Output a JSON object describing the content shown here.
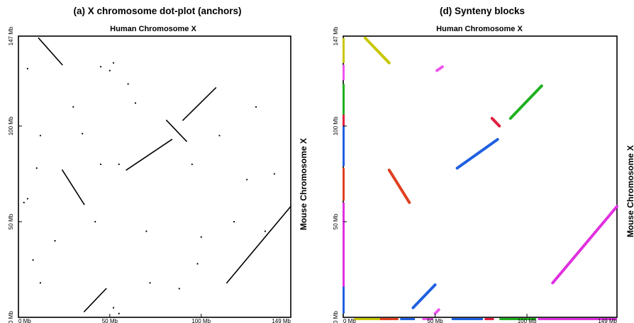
{
  "chart_data": [
    {
      "type": "scatter",
      "title": "(a) X chromosome dot-plot (anchors)",
      "xlabel": "Human Chromosome X",
      "ylabel": "Mouse Chromosome X",
      "xlim": [
        0,
        149
      ],
      "ylim": [
        0,
        147
      ],
      "xticks": [
        {
          "value": 0,
          "label": "0 Mb"
        },
        {
          "value": 50,
          "label": "50 Mb"
        },
        {
          "value": 100,
          "label": "100 Mb"
        },
        {
          "value": 149,
          "label": "149 Mb"
        }
      ],
      "yticks": [
        {
          "value": 0,
          "label": "0 Mb"
        },
        {
          "value": 50,
          "label": "50 Mb"
        },
        {
          "value": 100,
          "label": "100 Mb"
        },
        {
          "value": 147,
          "label": "147 Mb"
        }
      ],
      "segments": [
        {
          "x": [
            11,
            24
          ],
          "y": [
            146,
            132
          ]
        },
        {
          "x": [
            24,
            36
          ],
          "y": [
            77,
            59
          ]
        },
        {
          "x": [
            36,
            48
          ],
          "y": [
            3,
            15
          ]
        },
        {
          "x": [
            59,
            84
          ],
          "y": [
            77,
            93
          ]
        },
        {
          "x": [
            81,
            92
          ],
          "y": [
            103,
            92
          ]
        },
        {
          "x": [
            90,
            108
          ],
          "y": [
            103,
            120
          ]
        },
        {
          "x": [
            114,
            149
          ],
          "y": [
            18,
            58
          ]
        }
      ],
      "points": [
        {
          "x": 5,
          "y": 130
        },
        {
          "x": 45,
          "y": 131
        },
        {
          "x": 52,
          "y": 133
        },
        {
          "x": 50,
          "y": 129
        },
        {
          "x": 60,
          "y": 122
        },
        {
          "x": 30,
          "y": 110
        },
        {
          "x": 35,
          "y": 96
        },
        {
          "x": 12,
          "y": 95
        },
        {
          "x": 130,
          "y": 110
        },
        {
          "x": 140,
          "y": 75
        },
        {
          "x": 45,
          "y": 80
        },
        {
          "x": 55,
          "y": 80
        },
        {
          "x": 95,
          "y": 80
        },
        {
          "x": 125,
          "y": 72
        },
        {
          "x": 10,
          "y": 78
        },
        {
          "x": 5,
          "y": 62
        },
        {
          "x": 8,
          "y": 30
        },
        {
          "x": 12,
          "y": 18
        },
        {
          "x": 42,
          "y": 50
        },
        {
          "x": 70,
          "y": 45
        },
        {
          "x": 100,
          "y": 42
        },
        {
          "x": 118,
          "y": 50
        },
        {
          "x": 135,
          "y": 45
        },
        {
          "x": 52,
          "y": 5
        },
        {
          "x": 55,
          "y": 2
        },
        {
          "x": 72,
          "y": 18
        },
        {
          "x": 88,
          "y": 15
        },
        {
          "x": 98,
          "y": 28
        },
        {
          "x": 3,
          "y": 60
        },
        {
          "x": 20,
          "y": 40
        },
        {
          "x": 64,
          "y": 112
        },
        {
          "x": 110,
          "y": 95
        }
      ]
    },
    {
      "type": "scatter",
      "title": "(d) Synteny blocks",
      "xlabel": "Human Chromosome X",
      "ylabel": "Mouse Chromosome X",
      "xlim": [
        0,
        149
      ],
      "ylim": [
        0,
        147
      ],
      "xticks": [
        {
          "value": 0,
          "label": "0 Mb"
        },
        {
          "value": 50,
          "label": "50 Mb"
        },
        {
          "value": 100,
          "label": "100 Mb"
        },
        {
          "value": 149,
          "label": "149 Mb"
        }
      ],
      "yticks": [
        {
          "value": 0,
          "label": "0 Mb"
        },
        {
          "value": 50,
          "label": "50 Mb"
        },
        {
          "value": 100,
          "label": "100 Mb"
        },
        {
          "value": 147,
          "label": "147 Mb"
        }
      ],
      "blocks": [
        {
          "color": "#c8c800",
          "x": [
            12,
            25
          ],
          "y": [
            146,
            133
          ]
        },
        {
          "color": "#e04020",
          "x": [
            25,
            36
          ],
          "y": [
            77,
            60
          ]
        },
        {
          "color": "#2060e0",
          "x": [
            38,
            50
          ],
          "y": [
            5,
            17
          ]
        },
        {
          "color": "#ee55ee",
          "x": [
            51,
            54
          ],
          "y": [
            129,
            131
          ]
        },
        {
          "color": "#ee55ee",
          "x": [
            50,
            52
          ],
          "y": [
            2,
            4
          ]
        },
        {
          "color": "#2060e0",
          "x": [
            62,
            84
          ],
          "y": [
            78,
            93
          ]
        },
        {
          "color": "#e02040",
          "x": [
            81,
            85
          ],
          "y": [
            104,
            100
          ]
        },
        {
          "color": "#20b020",
          "x": [
            91,
            108
          ],
          "y": [
            104,
            121
          ]
        },
        {
          "color": "#e030e0",
          "x": [
            114,
            149
          ],
          "y": [
            18,
            58
          ]
        }
      ],
      "x_track": [
        {
          "color": "#c8c800",
          "x": [
            6,
            20
          ]
        },
        {
          "color": "#e04020",
          "x": [
            20,
            30
          ]
        },
        {
          "color": "#2060e0",
          "x": [
            31,
            39
          ]
        },
        {
          "color": "#ee55ee",
          "x": [
            43,
            49
          ]
        },
        {
          "color": "#2060e0",
          "x": [
            59,
            76
          ]
        },
        {
          "color": "#e02040",
          "x": [
            77,
            82
          ]
        },
        {
          "color": "#20b020",
          "x": [
            85,
            105
          ]
        },
        {
          "color": "#e030e0",
          "x": [
            106,
            149
          ]
        }
      ],
      "y_track": [
        {
          "color": "#e030e0",
          "y": [
            15,
            60
          ]
        },
        {
          "color": "#2060e0",
          "y": [
            2,
            16
          ]
        },
        {
          "color": "#e04020",
          "y": [
            61,
            78
          ]
        },
        {
          "color": "#2060e0",
          "y": [
            79,
            100
          ]
        },
        {
          "color": "#e02040",
          "y": [
            100,
            106
          ]
        },
        {
          "color": "#20b020",
          "y": [
            106,
            122
          ]
        },
        {
          "color": "#ee55ee",
          "y": [
            124,
            132
          ]
        },
        {
          "color": "#c8c800",
          "y": [
            133,
            146
          ]
        }
      ]
    }
  ]
}
